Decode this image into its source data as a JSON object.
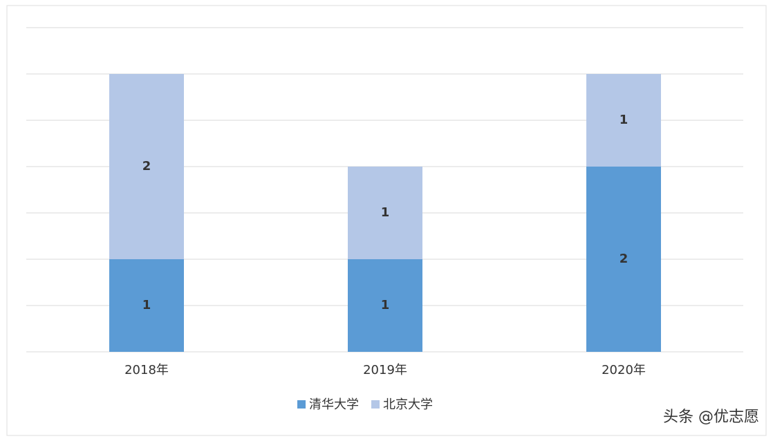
{
  "chart_data": {
    "type": "stacked_bar",
    "categories": [
      "2018年",
      "2019年",
      "2020年"
    ],
    "series": [
      {
        "name": "清华大学",
        "color": "#5b9bd5",
        "values": [
          1,
          1,
          2
        ]
      },
      {
        "name": "北京大学",
        "color": "#b4c7e7",
        "values": [
          2,
          1,
          1
        ]
      }
    ],
    "ylim": [
      0,
      3.5
    ],
    "yticks": [
      0,
      0.5,
      1,
      1.5,
      2,
      2.5,
      3,
      3.5
    ],
    "grid": true,
    "legend": "bottom",
    "watermark": "头条 @优志愿"
  }
}
